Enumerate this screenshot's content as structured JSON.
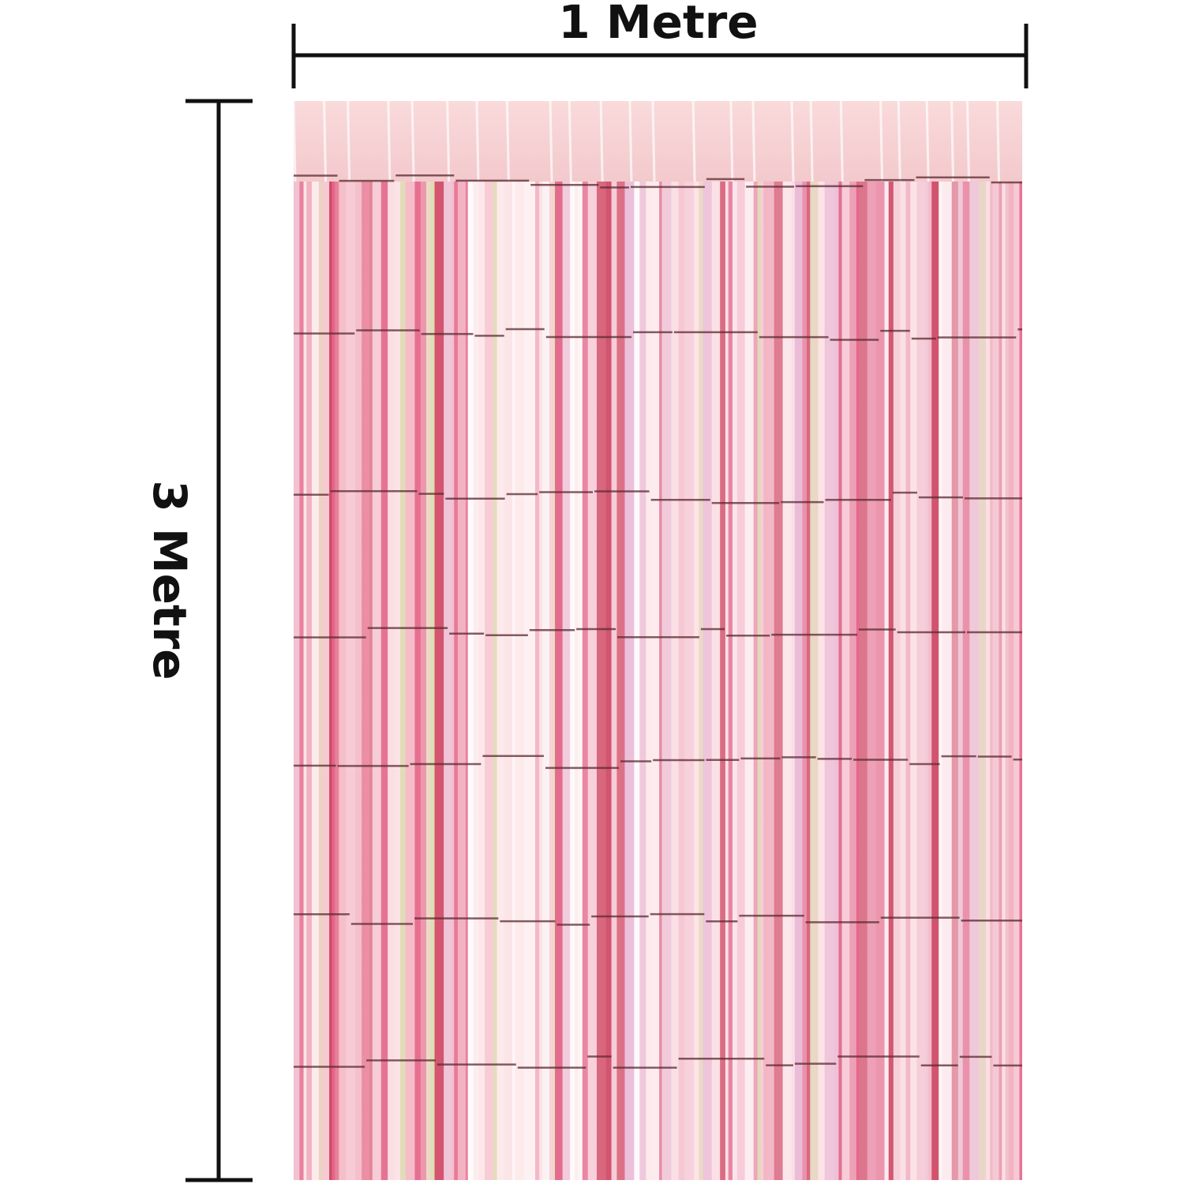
{
  "width_label": "1 Metre",
  "height_label": "3 Metre"
}
